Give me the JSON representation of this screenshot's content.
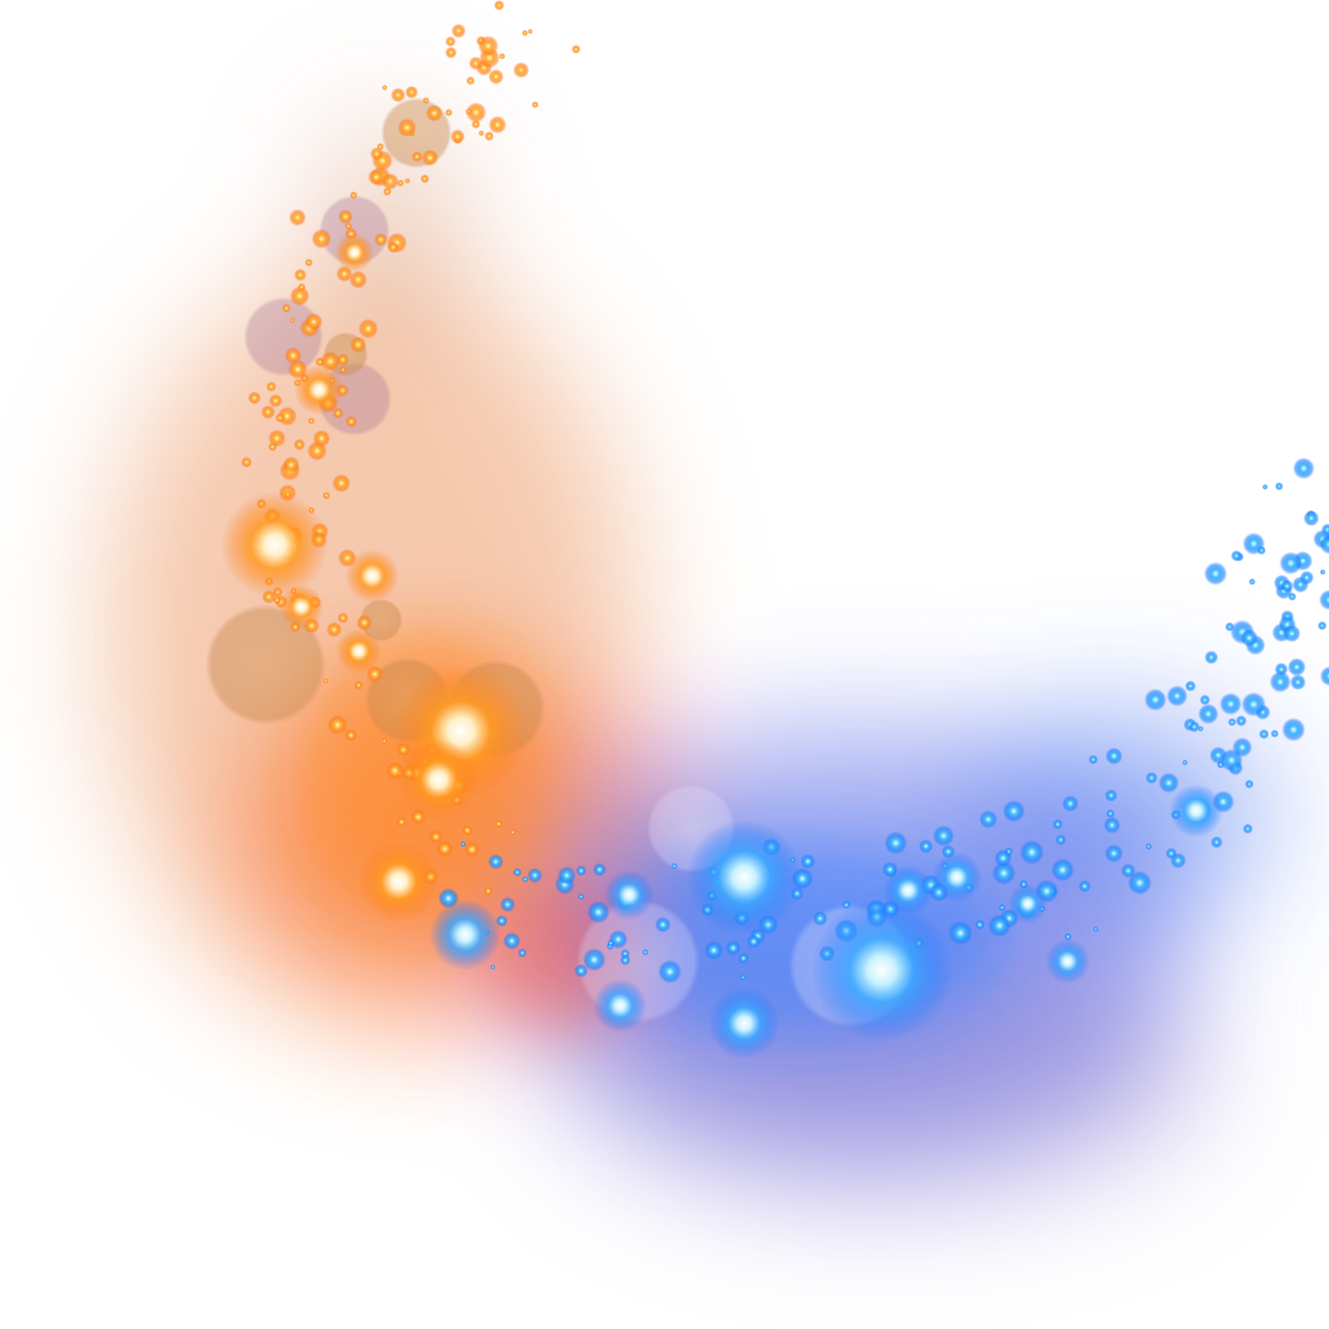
{
  "image": {
    "background_color": "#ffffff",
    "warm_colors": [
      "#ff7a1a",
      "#ff9a20",
      "#ffd27a",
      "#e05a2a"
    ],
    "cool_colors": [
      "#1e8fff",
      "#3aa8ff",
      "#b4e8ff",
      "#6a5ad8"
    ],
    "motif": "crescent-sparkle-trail"
  }
}
